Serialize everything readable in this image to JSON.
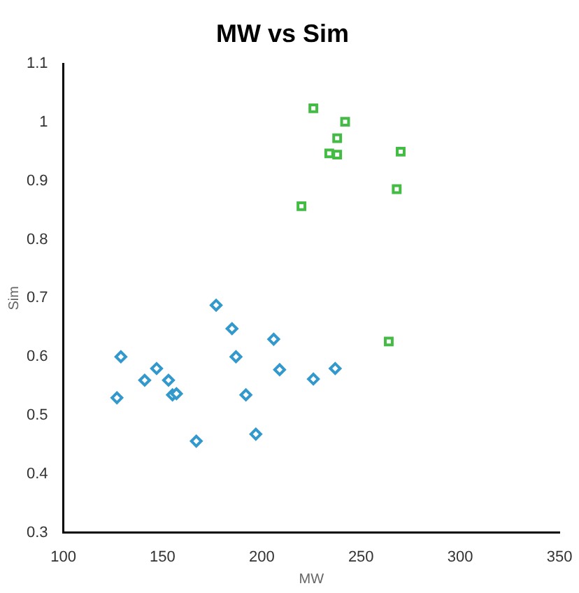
{
  "chart_data": {
    "type": "scatter",
    "title": "MW vs Sim",
    "xlabel": "MW",
    "ylabel": "Sim",
    "xlim": [
      100,
      350
    ],
    "xticks": [
      100,
      150,
      200,
      250,
      300,
      350
    ],
    "ylim": [
      0.3,
      1.1
    ],
    "yticks": [
      0.3,
      0.4,
      0.5,
      0.6,
      0.7,
      0.8,
      0.9,
      1,
      1.1
    ],
    "grid": false,
    "legend": false,
    "series": [
      {
        "color": "#3399cc",
        "marker": "diamond",
        "x": [
          127,
          129,
          141,
          147,
          153,
          155,
          157,
          167,
          177,
          185,
          187,
          191,
          192,
          197,
          206,
          209,
          226,
          237
        ],
        "values": [
          0.53,
          0.6,
          0.56,
          0.58,
          0.56,
          0.535,
          0.537,
          0.456,
          0.688,
          0.648,
          0.6,
          null,
          0.535,
          0.468,
          0.63,
          0.578,
          0.562,
          0.58
        ]
      },
      {
        "color": "#44bb44",
        "marker": "square",
        "x": [
          264,
          226,
          242,
          238,
          234,
          238,
          270,
          268,
          220
        ],
        "values": [
          0.626,
          1.024,
          1.001,
          0.973,
          0.947,
          0.945,
          0.95,
          0.886,
          0.857
        ]
      }
    ]
  }
}
